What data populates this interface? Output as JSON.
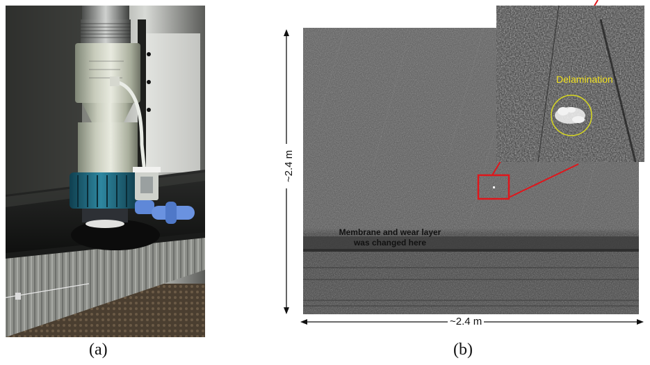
{
  "captions": {
    "a": "(a)",
    "b": "(b)"
  },
  "dimensions": {
    "height": "~2.4 m",
    "width": "~2.4 m"
  },
  "annotations": {
    "membrane": "Membrane and wear layer was changed here",
    "delamination": "Delamination"
  },
  "colors": {
    "callout": "#e0161b",
    "delamination_text": "#f0e020",
    "delamination_circle": "#d8d820",
    "bottle_cap": "#1f6f86",
    "valve": "#5f88d8"
  }
}
